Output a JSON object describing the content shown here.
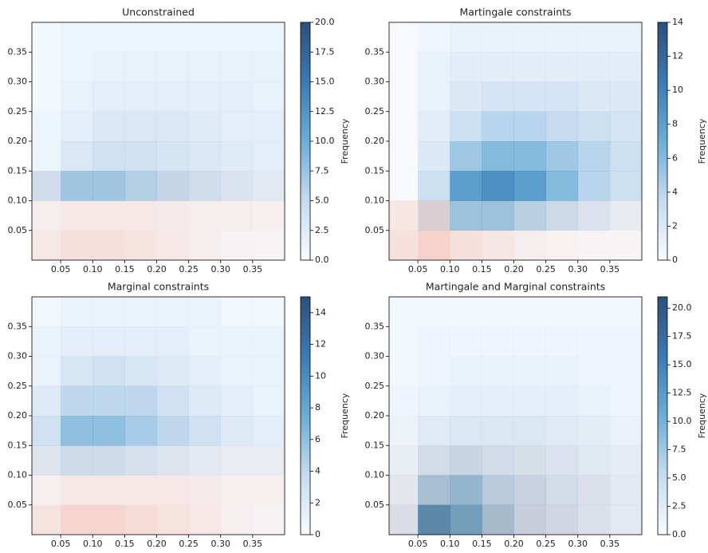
{
  "chart_data": [
    {
      "type": "heatmap",
      "title": "Unconstrained",
      "colorbar_label": "Frequency",
      "x_bins": [
        0.005,
        0.05,
        0.1,
        0.15,
        0.2,
        0.25,
        0.3,
        0.35,
        0.4
      ],
      "y_bins": [
        0,
        0.05,
        0.1,
        0.15,
        0.2,
        0.25,
        0.3,
        0.35,
        0.4
      ],
      "xlim": [
        0.005,
        0.4
      ],
      "ylim": [
        0,
        0.4
      ],
      "xticks": [
        0.05,
        {
          "value": 0.1,
          "label": "0.10"
        },
        0.15,
        {
          "value": 0.2,
          "label": "0.20"
        },
        0.25,
        {
          "value": 0.3,
          "label": "0.30"
        },
        0.35
      ],
      "yticks": [
        0.05,
        {
          "value": 0.1,
          "label": "0.10"
        },
        0.15,
        {
          "value": 0.2,
          "label": "0.20"
        },
        0.25,
        {
          "value": 0.3,
          "label": "0.30"
        },
        0.35
      ],
      "clim": [
        0,
        20
      ],
      "cticks": [
        {
          "value": 0,
          "label": "0.0"
        },
        2.5,
        {
          "value": 5,
          "label": "5.0"
        },
        7.5,
        {
          "value": 10,
          "label": "10.0"
        },
        12.5,
        {
          "value": 15,
          "label": "15.0"
        },
        17.5,
        {
          "value": 20,
          "label": "20.0"
        }
      ],
      "series": [
        {
          "colors": [
            "#f7fbff",
            "#c6dbef",
            "#6baed6",
            "#3a7ab3",
            "#2f4f7c"
          ],
          "values": [
            [
              0,
              0,
              0,
              0,
              0,
              0,
              0,
              0
            ],
            [
              0,
              0,
              0,
              0,
              0,
              0,
              0,
              0
            ],
            [
              4,
              7,
              7,
              6,
              5,
              4,
              3,
              2
            ],
            [
              1,
              3,
              4,
              4,
              3.5,
              3,
              2.5,
              2
            ],
            [
              1,
              2,
              3,
              3,
              3,
              2.5,
              2,
              2
            ],
            [
              0.5,
              1.5,
              2,
              2,
              2,
              2,
              2,
              1.5
            ],
            [
              0.5,
              1,
              1.5,
              1.5,
              1.5,
              1.5,
              1.5,
              1.5
            ],
            [
              0.5,
              1,
              1,
              1,
              1,
              1,
              1,
              1
            ]
          ]
        },
        {
          "colors": [
            "#ffffff",
            "#fdd0c2",
            "#f7a08a"
          ],
          "values": [
            [
              4,
              6,
              6,
              5,
              4,
              3,
              2,
              1.5
            ],
            [
              3,
              4,
              4,
              4,
              3.5,
              3,
              3,
              2.5
            ],
            [
              1,
              1,
              1,
              1,
              1,
              1,
              1,
              1
            ],
            [
              0,
              0,
              0,
              0,
              0,
              0,
              0,
              0
            ],
            [
              0,
              0,
              0,
              0,
              0,
              0,
              0,
              0
            ],
            [
              0,
              0,
              0,
              0,
              0,
              0,
              0,
              0
            ],
            [
              0,
              0,
              0,
              0,
              0,
              0,
              0,
              0
            ],
            [
              0,
              0,
              0,
              0,
              0,
              0,
              0,
              0
            ]
          ]
        }
      ]
    },
    {
      "type": "heatmap",
      "title": "Martingale constraints",
      "colorbar_label": "Frequency",
      "x_bins": [
        0.005,
        0.05,
        0.1,
        0.15,
        0.2,
        0.25,
        0.3,
        0.35,
        0.4
      ],
      "y_bins": [
        0,
        0.05,
        0.1,
        0.15,
        0.2,
        0.25,
        0.3,
        0.35,
        0.4
      ],
      "xlim": [
        0.005,
        0.4
      ],
      "ylim": [
        0,
        0.4
      ],
      "xticks": [
        0.05,
        {
          "value": 0.1,
          "label": "0.10"
        },
        0.15,
        {
          "value": 0.2,
          "label": "0.20"
        },
        0.25,
        {
          "value": 0.3,
          "label": "0.30"
        },
        0.35
      ],
      "yticks": [
        0.05,
        {
          "value": 0.1,
          "label": "0.10"
        },
        0.15,
        {
          "value": 0.2,
          "label": "0.20"
        },
        0.25,
        {
          "value": 0.3,
          "label": "0.30"
        },
        0.35
      ],
      "clim": [
        0,
        14
      ],
      "cticks": [
        0,
        2,
        4,
        6,
        8,
        10,
        12,
        14
      ],
      "series": [
        {
          "colors": [
            "#f7fbff",
            "#c6dbef",
            "#6baed6",
            "#3a7ab3",
            "#2f4f7c"
          ],
          "values": [
            [
              0,
              0,
              0,
              0,
              0,
              0,
              0,
              0
            ],
            [
              0,
              2,
              5,
              5,
              4,
              3,
              2,
              1
            ],
            [
              0,
              3,
              8,
              9,
              8,
              6,
              4,
              3
            ],
            [
              0,
              2,
              5,
              6,
              6,
              5,
              4,
              3
            ],
            [
              0,
              1.5,
              3,
              4,
              4,
              3.5,
              3,
              2.5
            ],
            [
              0,
              1,
              2,
              2.5,
              2.5,
              2.5,
              2,
              2
            ],
            [
              0,
              1,
              1.5,
              1.5,
              1.5,
              1.5,
              1.5,
              1.5
            ],
            [
              0,
              0.5,
              1,
              1,
              1,
              1,
              1,
              1
            ]
          ]
        },
        {
          "colors": [
            "#ffffff",
            "#fdd0c2",
            "#f7a08a"
          ],
          "values": [
            [
              4,
              6,
              4,
              3,
              2,
              1.5,
              1,
              1
            ],
            [
              3,
              4,
              1,
              1,
              1,
              1,
              1,
              1
            ],
            [
              0.5,
              0,
              0,
              0,
              0,
              0,
              0,
              0
            ],
            [
              0.5,
              0,
              0,
              0,
              0,
              0,
              0,
              0
            ],
            [
              0.5,
              0,
              0,
              0,
              0,
              0,
              0,
              0
            ],
            [
              0.5,
              0,
              0,
              0,
              0,
              0,
              0,
              0
            ],
            [
              0.5,
              0,
              0,
              0,
              0,
              0,
              0,
              0
            ],
            [
              0.5,
              0,
              0,
              0,
              0,
              0,
              0,
              0
            ]
          ]
        }
      ]
    },
    {
      "type": "heatmap",
      "title": "Marginal   constraints",
      "colorbar_label": "Frequency",
      "x_bins": [
        0.005,
        0.05,
        0.1,
        0.15,
        0.2,
        0.25,
        0.3,
        0.35,
        0.4
      ],
      "y_bins": [
        0,
        0.05,
        0.1,
        0.15,
        0.2,
        0.25,
        0.3,
        0.35,
        0.4
      ],
      "xlim": [
        0.005,
        0.4
      ],
      "ylim": [
        0,
        0.4
      ],
      "xticks": [
        0.05,
        {
          "value": 0.1,
          "label": "0.10"
        },
        0.15,
        {
          "value": 0.2,
          "label": "0.20"
        },
        0.25,
        {
          "value": 0.3,
          "label": "0.30"
        },
        0.35
      ],
      "yticks": [
        0.05,
        {
          "value": 0.1,
          "label": "0.10"
        },
        0.15,
        {
          "value": 0.2,
          "label": "0.20"
        },
        0.25,
        {
          "value": 0.3,
          "label": "0.30"
        },
        0.35
      ],
      "clim": [
        0,
        15
      ],
      "cticks": [
        0,
        2,
        4,
        6,
        8,
        10,
        12,
        14
      ],
      "series": [
        {
          "colors": [
            "#f7fbff",
            "#c6dbef",
            "#6baed6",
            "#3a7ab3",
            "#2f4f7c"
          ],
          "values": [
            [
              0,
              0,
              0,
              0,
              0,
              0,
              0,
              0
            ],
            [
              0,
              0,
              0,
              0,
              0,
              0,
              0,
              0
            ],
            [
              2,
              3,
              3,
              2.5,
              2,
              1.5,
              1,
              1
            ],
            [
              3,
              6,
              6,
              5,
              4,
              3,
              2,
              1.5
            ],
            [
              2,
              4,
              4,
              4,
              3,
              2,
              1.5,
              1
            ],
            [
              1,
              2.5,
              3,
              2.5,
              2,
              1.5,
              1,
              1
            ],
            [
              1,
              1.5,
              1.5,
              1.5,
              1.5,
              1,
              1,
              1
            ],
            [
              0.5,
              1,
              1,
              1,
              1,
              1,
              0.5,
              0.5
            ]
          ]
        },
        {
          "colors": [
            "#ffffff",
            "#fdd0c2",
            "#f7a08a"
          ],
          "values": [
            [
              4,
              6,
              6,
              5,
              4,
              3,
              2,
              1.5
            ],
            [
              2,
              3,
              3,
              3,
              3,
              2.5,
              2,
              2
            ],
            [
              1,
              1,
              1,
              1,
              1,
              1,
              1,
              1
            ],
            [
              0,
              0,
              0,
              0,
              0,
              0,
              0,
              0
            ],
            [
              0,
              0,
              0,
              0,
              0,
              0,
              0,
              0
            ],
            [
              0,
              0,
              0,
              0,
              0,
              0,
              0,
              0
            ],
            [
              0,
              0,
              0,
              0,
              0,
              0,
              0,
              0
            ],
            [
              0,
              0,
              0,
              0,
              0,
              0,
              0,
              0
            ]
          ]
        }
      ]
    },
    {
      "type": "heatmap",
      "title": "Martingale and Marginal   constraints",
      "colorbar_label": "Frequency",
      "x_bins": [
        0.005,
        0.05,
        0.1,
        0.15,
        0.2,
        0.25,
        0.3,
        0.35,
        0.4
      ],
      "y_bins": [
        0,
        0.05,
        0.1,
        0.15,
        0.2,
        0.25,
        0.3,
        0.35,
        0.4
      ],
      "xlim": [
        0.005,
        0.4
      ],
      "ylim": [
        0,
        0.4
      ],
      "xticks": [
        0.05,
        {
          "value": 0.1,
          "label": "0.10"
        },
        0.15,
        {
          "value": 0.2,
          "label": "0.20"
        },
        0.25,
        {
          "value": 0.3,
          "label": "0.30"
        },
        0.35
      ],
      "yticks": [
        0.05,
        {
          "value": 0.1,
          "label": "0.10"
        },
        0.15,
        {
          "value": 0.2,
          "label": "0.20"
        },
        0.25,
        {
          "value": 0.3,
          "label": "0.30"
        },
        0.35
      ],
      "clim": [
        0,
        21
      ],
      "cticks": [
        {
          "value": 0,
          "label": "0.0"
        },
        2.5,
        {
          "value": 5,
          "label": "5.0"
        },
        7.5,
        {
          "value": 10,
          "label": "10.0"
        },
        12.5,
        {
          "value": 15,
          "label": "15.0"
        },
        17.5,
        {
          "value": 20,
          "label": "20.0"
        }
      ],
      "series": [
        {
          "colors": [
            "#f7fbff",
            "#c6dbef",
            "#6baed6",
            "#3a7ab3",
            "#2f4f7c"
          ],
          "values": [
            [
              3,
              12,
              10,
              7,
              5,
              4,
              3,
              2
            ],
            [
              2,
              7,
              8,
              6,
              5,
              4,
              3,
              2
            ],
            [
              1.5,
              4,
              5,
              4,
              3.5,
              3,
              2.5,
              2
            ],
            [
              1,
              2.5,
              3,
              3,
              3,
              2.5,
              2,
              1.5
            ],
            [
              1,
              1.5,
              2,
              2,
              2,
              2,
              1.5,
              1
            ],
            [
              0.5,
              1,
              1.5,
              1.5,
              1.5,
              1.5,
              1,
              1
            ],
            [
              0.5,
              1,
              1,
              1,
              1,
              1,
              1,
              1
            ],
            [
              0.5,
              0.5,
              0.5,
              0.5,
              0.5,
              0.5,
              0.5,
              0.5
            ]
          ]
        },
        {
          "colors": [
            "#ffffff",
            "#fdd0c2",
            "#f7a08a"
          ],
          "values": [
            [
              3,
              8,
              6,
              5,
              4,
              3,
              2,
              1.5
            ],
            [
              2,
              4,
              4,
              3,
              3,
              2,
              2,
              1.5
            ],
            [
              1,
              2,
              2,
              2,
              2,
              1.5,
              1,
              1
            ],
            [
              0.5,
              0.5,
              0.5,
              0.5,
              0.5,
              0.5,
              0.5,
              0.5
            ],
            [
              0,
              0,
              0,
              0,
              0,
              0,
              0,
              0
            ],
            [
              0,
              0,
              0,
              0,
              0,
              0,
              0,
              0
            ],
            [
              0,
              0,
              0,
              0,
              0,
              0,
              0,
              0
            ],
            [
              0,
              0,
              0,
              0,
              0,
              0,
              0,
              0
            ]
          ]
        }
      ]
    }
  ]
}
